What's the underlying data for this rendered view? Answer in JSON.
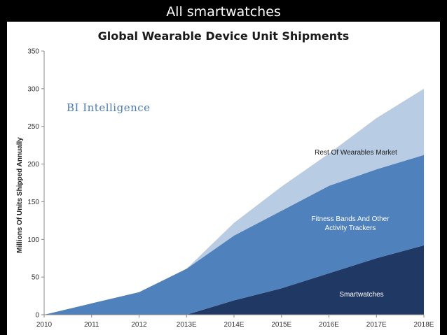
{
  "slide": {
    "title": "All smartwatches"
  },
  "brand": {
    "text": "BI Intelligence"
  },
  "colors": {
    "rest": "#b8cce4",
    "fitness": "#4f81bd",
    "smartwatches": "#1f3864",
    "axis": "#888888"
  },
  "chart_data": {
    "type": "area",
    "stacked": true,
    "title": "Global Wearable Device Unit Shipments",
    "xlabel": "",
    "ylabel": "Millions Of Units Shipped Annually",
    "categories": [
      "2010",
      "2011",
      "2012",
      "2013E",
      "2014E",
      "2015E",
      "2016E",
      "2017E",
      "2018E"
    ],
    "ylim": [
      0,
      350
    ],
    "yticks": [
      0,
      50,
      100,
      150,
      200,
      250,
      300,
      350
    ],
    "grid": false,
    "series": [
      {
        "name": "Smartwatches",
        "values": [
          0,
          0,
          0,
          0,
          19,
          35,
          55,
          75,
          92
        ]
      },
      {
        "name": "Fitness Bands And Other Activity Trackers",
        "label_lines": [
          "Fitness Bands And Other",
          "Activity Trackers"
        ],
        "values": [
          0,
          15,
          30,
          61,
          86,
          103,
          116,
          118,
          120
        ]
      },
      {
        "name": "Rest Of Wearables Market",
        "values": [
          0,
          0,
          0,
          0,
          17,
          32,
          43,
          68,
          88
        ]
      }
    ]
  }
}
